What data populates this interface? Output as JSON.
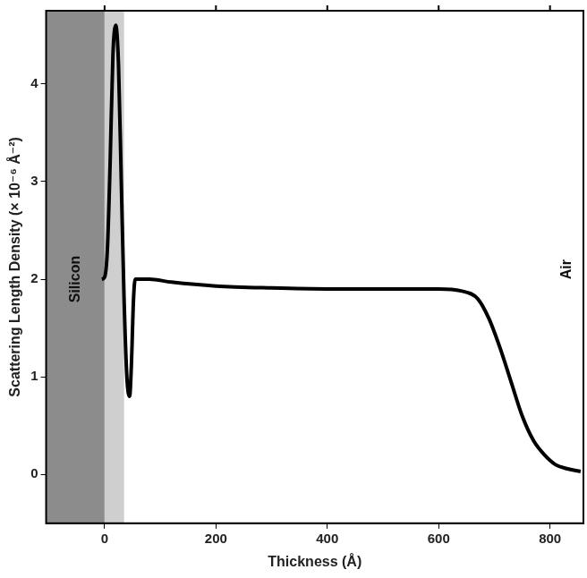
{
  "chart_data": {
    "type": "line",
    "x_label": "Thickness (Å)",
    "y_label": "Scattering Length Density (× 10⁻⁶ Å⁻²)",
    "x": [
      -5,
      0,
      5,
      10,
      15,
      20,
      25,
      30,
      35,
      40,
      45,
      48,
      52,
      55,
      80,
      120,
      200,
      300,
      400,
      500,
      600,
      640,
      670,
      690,
      710,
      730,
      750,
      770,
      790,
      810,
      830,
      855
    ],
    "values": [
      2.0,
      2.02,
      2.3,
      3.2,
      4.3,
      4.6,
      4.2,
      3.0,
      1.8,
      1.0,
      0.8,
      1.1,
      1.8,
      2.0,
      2.0,
      1.97,
      1.93,
      1.91,
      1.9,
      1.9,
      1.9,
      1.88,
      1.8,
      1.6,
      1.3,
      0.95,
      0.6,
      0.35,
      0.2,
      0.1,
      0.06,
      0.03
    ],
    "color": "#000000",
    "xlim": [
      -105,
      860
    ],
    "ylim": [
      -0.5,
      4.75
    ],
    "xticks": [
      0,
      200,
      400,
      600,
      800
    ],
    "yticks": [
      0,
      1,
      2,
      3,
      4
    ],
    "grid": false,
    "regions": [
      {
        "label": "Silicon",
        "x0": -105,
        "x1": 0,
        "color": "#8c8c8c"
      },
      {
        "x0": 0,
        "x1": 35,
        "color": "#cfcfcf"
      }
    ],
    "annotations": [
      {
        "text": "Air",
        "x": 830,
        "y": 2.1
      }
    ]
  }
}
